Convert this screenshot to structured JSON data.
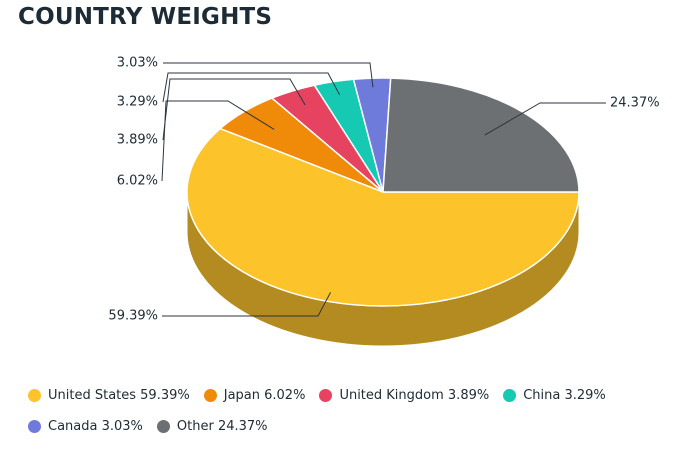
{
  "title": "COUNTRY WEIGHTS",
  "chart_data": {
    "type": "pie",
    "style": "3d",
    "slices": [
      {
        "name": "United States",
        "value": 59.39,
        "label": "59.39%",
        "legend": "United States 59.39%",
        "color": "#fcc42a",
        "side_color": "#b48b21"
      },
      {
        "name": "Japan",
        "value": 6.02,
        "label": "6.02%",
        "legend": "Japan 6.02%",
        "color": "#f08a09",
        "side_color": "#a86106"
      },
      {
        "name": "United Kingdom",
        "value": 3.89,
        "label": "3.89%",
        "legend": "United Kingdom 3.89%",
        "color": "#e5435f",
        "side_color": "#a02f43"
      },
      {
        "name": "China",
        "value": 3.29,
        "label": "3.29%",
        "legend": "China 3.29%",
        "color": "#16c9b2",
        "side_color": "#0f8d7d"
      },
      {
        "name": "Canada",
        "value": 3.03,
        "label": "3.03%",
        "legend": "Canada 3.03%",
        "color": "#6e7bdb",
        "side_color": "#4d569a"
      },
      {
        "name": "Other",
        "value": 24.37,
        "label": "24.37%",
        "legend": "Other 24.37%",
        "color": "#6d7073",
        "side_color": "#4c4e50"
      }
    ],
    "legend_position": "bottom"
  }
}
